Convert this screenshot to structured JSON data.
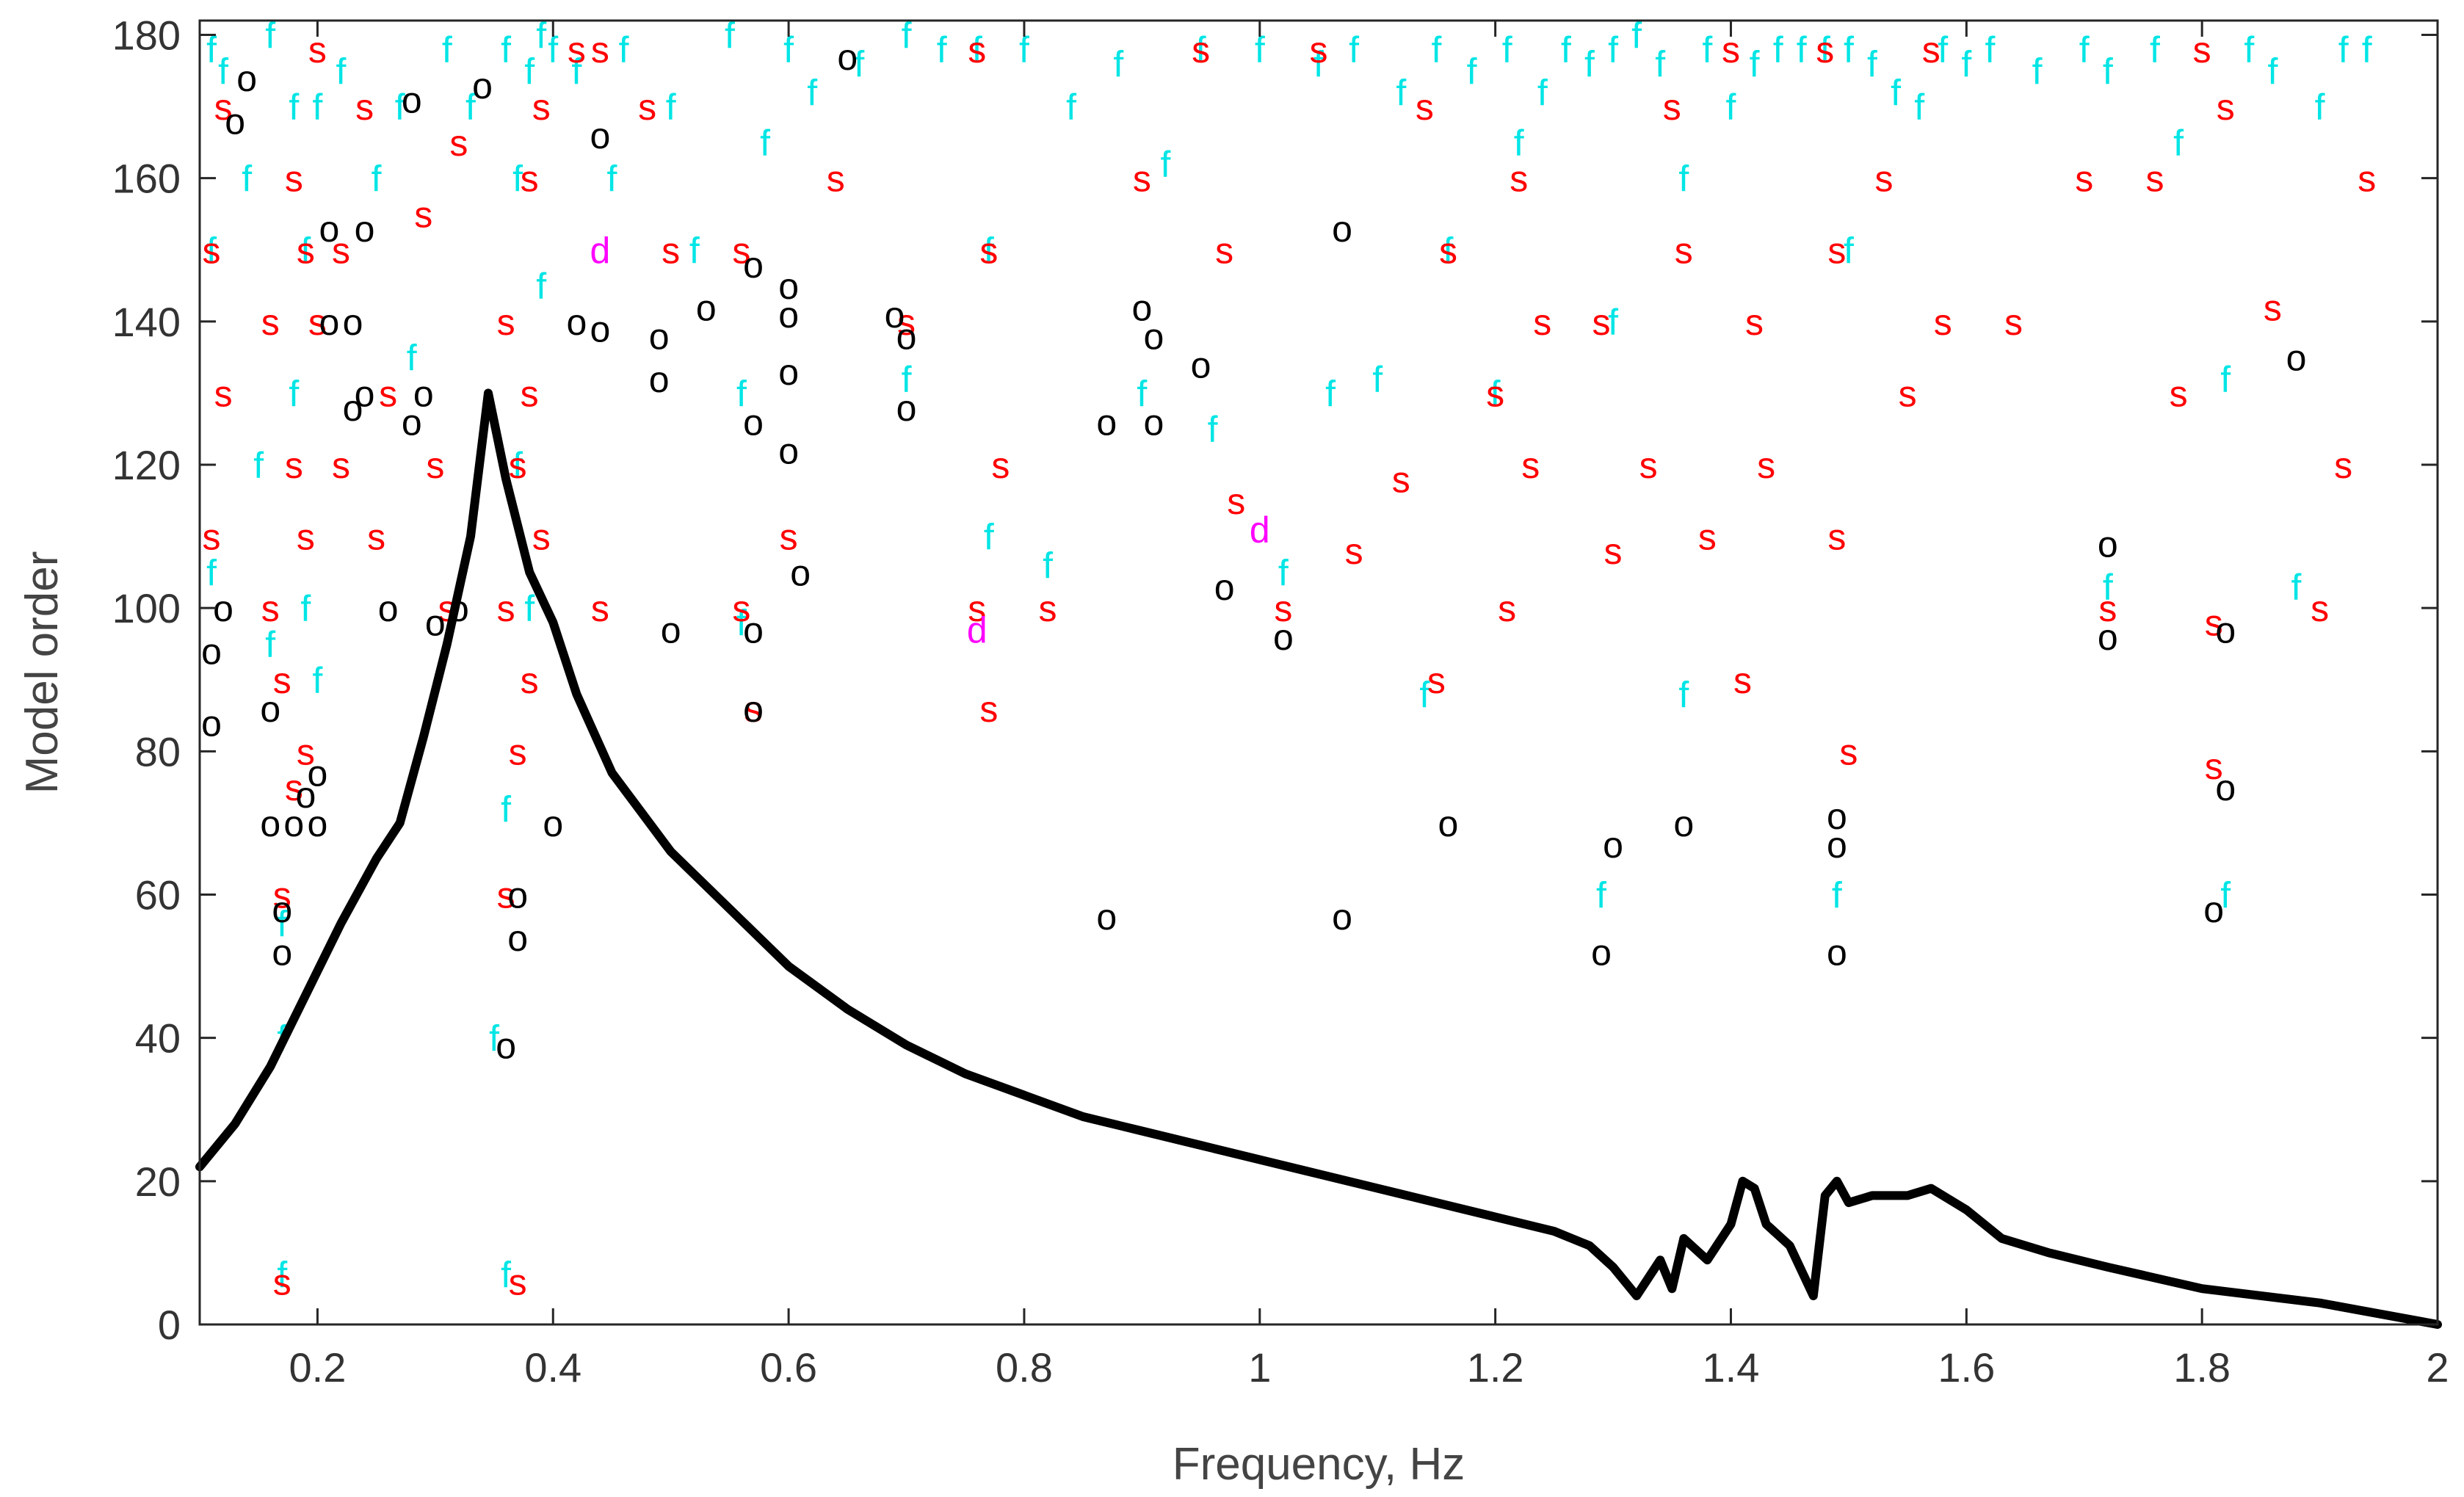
{
  "chart_data": {
    "type": "scatter",
    "title": "",
    "xlabel": "Frequency, Hz",
    "ylabel": "Model order",
    "xlim": [
      0.1,
      2.0
    ],
    "ylim": [
      0,
      182
    ],
    "xticks": [
      0.2,
      0.4,
      0.6,
      0.8,
      1.0,
      1.2,
      1.4,
      1.6,
      1.8,
      2.0
    ],
    "xtick_labels": [
      "0.2",
      "0.4",
      "0.6",
      "0.8",
      "1",
      "1.2",
      "1.4",
      "1.6",
      "1.8",
      "2"
    ],
    "yticks": [
      0,
      20,
      40,
      60,
      80,
      100,
      120,
      140,
      160,
      180
    ],
    "ytick_labels": [
      "0",
      "20",
      "40",
      "60",
      "80",
      "100",
      "120",
      "140",
      "160",
      "180"
    ],
    "grid": false,
    "colors": {
      "f": "#00e5e5",
      "s": "#ff0000",
      "o": "#000000",
      "d": "#ff00ff",
      "curve": "#000000"
    },
    "series": [
      {
        "name": "spectrum",
        "kind": "line",
        "x": [
          0.1,
          0.13,
          0.16,
          0.19,
          0.22,
          0.25,
          0.27,
          0.29,
          0.31,
          0.33,
          0.345,
          0.36,
          0.38,
          0.4,
          0.42,
          0.45,
          0.5,
          0.55,
          0.6,
          0.65,
          0.7,
          0.75,
          0.8,
          0.85,
          0.9,
          0.95,
          1.0,
          1.05,
          1.1,
          1.15,
          1.2,
          1.25,
          1.28,
          1.3,
          1.32,
          1.34,
          1.35,
          1.36,
          1.38,
          1.4,
          1.41,
          1.42,
          1.43,
          1.45,
          1.47,
          1.48,
          1.49,
          1.5,
          1.52,
          1.55,
          1.57,
          1.6,
          1.63,
          1.67,
          1.72,
          1.8,
          1.9,
          2.0
        ],
        "y": [
          22,
          28,
          36,
          46,
          56,
          65,
          70,
          82,
          95,
          110,
          130,
          118,
          105,
          98,
          88,
          77,
          66,
          58,
          50,
          44,
          39,
          35,
          32,
          29,
          27,
          25,
          23,
          21,
          19,
          17,
          15,
          13,
          11,
          8,
          4,
          9,
          5,
          12,
          9,
          14,
          20,
          19,
          14,
          11,
          4,
          18,
          20,
          17,
          18,
          18,
          19,
          16,
          12,
          10,
          8,
          5,
          3,
          0
        ]
      },
      {
        "name": "f",
        "kind": "marker",
        "x": [
          0.11,
          0.11,
          0.11,
          0.12,
          0.14,
          0.15,
          0.16,
          0.16,
          0.17,
          0.17,
          0.17,
          0.18,
          0.18,
          0.19,
          0.19,
          0.2,
          0.2,
          0.22,
          0.25,
          0.27,
          0.28,
          0.31,
          0.33,
          0.35,
          0.36,
          0.36,
          0.36,
          0.37,
          0.37,
          0.38,
          0.38,
          0.39,
          0.39,
          0.4,
          0.42,
          0.45,
          0.46,
          0.5,
          0.52,
          0.55,
          0.56,
          0.56,
          0.58,
          0.6,
          0.62,
          0.66,
          0.7,
          0.7,
          0.73,
          0.76,
          0.77,
          0.77,
          0.8,
          0.82,
          0.84,
          0.88,
          0.9,
          0.92,
          0.95,
          0.96,
          1.0,
          1.02,
          1.05,
          1.06,
          1.08,
          1.1,
          1.12,
          1.14,
          1.15,
          1.16,
          1.18,
          1.2,
          1.21,
          1.22,
          1.24,
          1.26,
          1.28,
          1.29,
          1.3,
          1.3,
          1.32,
          1.34,
          1.36,
          1.36,
          1.38,
          1.4,
          1.42,
          1.44,
          1.46,
          1.48,
          1.49,
          1.5,
          1.5,
          1.52,
          1.54,
          1.56,
          1.58,
          1.6,
          1.62,
          1.66,
          1.7,
          1.72,
          1.72,
          1.76,
          1.78,
          1.82,
          1.82,
          1.84,
          1.86,
          1.88,
          1.9,
          1.92,
          1.94
        ],
        "y": [
          178,
          150,
          105,
          175,
          160,
          120,
          180,
          95,
          56,
          40,
          7,
          170,
          130,
          150,
          100,
          90,
          170,
          175,
          160,
          170,
          135,
          178,
          170,
          40,
          7,
          72,
          178,
          120,
          160,
          175,
          100,
          145,
          180,
          178,
          175,
          160,
          178,
          170,
          150,
          180,
          130,
          98,
          165,
          178,
          172,
          176,
          180,
          132,
          178,
          178,
          150,
          110,
          178,
          106,
          170,
          176,
          130,
          162,
          178,
          125,
          178,
          105,
          176,
          130,
          178,
          132,
          172,
          88,
          178,
          150,
          175,
          130,
          178,
          165,
          172,
          178,
          176,
          60,
          140,
          178,
          180,
          176,
          88,
          160,
          178,
          170,
          176,
          178,
          178,
          178,
          60,
          150,
          178,
          176,
          172,
          170,
          178,
          176,
          178,
          175,
          178,
          103,
          175,
          178,
          165,
          60,
          132,
          178,
          175,
          103,
          170,
          178,
          178
        ]
      },
      {
        "name": "s",
        "kind": "marker",
        "x": [
          0.11,
          0.11,
          0.12,
          0.12,
          0.16,
          0.16,
          0.17,
          0.17,
          0.17,
          0.18,
          0.18,
          0.18,
          0.19,
          0.19,
          0.19,
          0.2,
          0.2,
          0.22,
          0.22,
          0.24,
          0.25,
          0.26,
          0.29,
          0.3,
          0.31,
          0.32,
          0.36,
          0.36,
          0.36,
          0.37,
          0.37,
          0.37,
          0.38,
          0.38,
          0.38,
          0.39,
          0.39,
          0.42,
          0.44,
          0.44,
          0.48,
          0.5,
          0.56,
          0.56,
          0.57,
          0.6,
          0.64,
          0.7,
          0.76,
          0.76,
          0.77,
          0.77,
          0.78,
          0.82,
          0.9,
          0.95,
          0.97,
          0.98,
          1.02,
          1.05,
          1.08,
          1.12,
          1.14,
          1.15,
          1.16,
          1.2,
          1.21,
          1.22,
          1.23,
          1.24,
          1.29,
          1.3,
          1.33,
          1.35,
          1.36,
          1.38,
          1.4,
          1.41,
          1.42,
          1.43,
          1.48,
          1.49,
          1.49,
          1.5,
          1.53,
          1.55,
          1.57,
          1.58,
          1.64,
          1.7,
          1.72,
          1.76,
          1.78,
          1.8,
          1.81,
          1.81,
          1.82,
          1.86,
          1.9,
          1.92,
          1.94
        ],
        "y": [
          150,
          110,
          130,
          170,
          140,
          100,
          60,
          90,
          6,
          160,
          120,
          75,
          150,
          110,
          80,
          140,
          178,
          150,
          120,
          170,
          110,
          130,
          155,
          120,
          100,
          165,
          60,
          100,
          140,
          6,
          80,
          120,
          160,
          90,
          130,
          170,
          110,
          178,
          178,
          100,
          170,
          150,
          150,
          100,
          86,
          110,
          160,
          140,
          178,
          100,
          150,
          86,
          120,
          100,
          160,
          178,
          150,
          115,
          100,
          178,
          108,
          118,
          170,
          90,
          150,
          130,
          100,
          160,
          120,
          140,
          140,
          108,
          120,
          170,
          150,
          110,
          178,
          90,
          140,
          120,
          178,
          150,
          110,
          80,
          160,
          130,
          178,
          140,
          140,
          160,
          100,
          160,
          130,
          178,
          98,
          78,
          170,
          142,
          100,
          120,
          160
        ]
      },
      {
        "name": "o",
        "kind": "marker",
        "x": [
          0.11,
          0.11,
          0.12,
          0.13,
          0.14,
          0.16,
          0.16,
          0.17,
          0.17,
          0.18,
          0.19,
          0.2,
          0.2,
          0.21,
          0.21,
          0.23,
          0.23,
          0.24,
          0.24,
          0.26,
          0.28,
          0.28,
          0.29,
          0.3,
          0.32,
          0.34,
          0.36,
          0.37,
          0.37,
          0.4,
          0.42,
          0.44,
          0.44,
          0.49,
          0.49,
          0.5,
          0.53,
          0.57,
          0.57,
          0.57,
          0.57,
          0.6,
          0.6,
          0.6,
          0.6,
          0.61,
          0.65,
          0.69,
          0.7,
          0.7,
          0.87,
          0.87,
          0.9,
          0.91,
          0.91,
          0.95,
          0.97,
          1.02,
          1.07,
          1.07,
          1.16,
          1.29,
          1.3,
          1.36,
          1.49,
          1.49,
          1.49,
          1.72,
          1.72,
          1.81,
          1.82,
          1.82,
          1.88
        ],
        "y": [
          84,
          94,
          100,
          168,
          174,
          70,
          86,
          52,
          58,
          70,
          74,
          70,
          77,
          153,
          140,
          128,
          140,
          130,
          153,
          100,
          126,
          171,
          130,
          98,
          100,
          173,
          39,
          54,
          60,
          70,
          140,
          139,
          166,
          132,
          138,
          97,
          142,
          86,
          97,
          126,
          148,
          122,
          133,
          141,
          145,
          105,
          177,
          141,
          128,
          138,
          57,
          126,
          142,
          126,
          138,
          134,
          103,
          96,
          57,
          153,
          70,
          52,
          67,
          70,
          52,
          67,
          71,
          96,
          109,
          58,
          75,
          97,
          135
        ]
      },
      {
        "name": "d",
        "kind": "marker",
        "x": [
          0.44,
          0.76,
          1.0
        ],
        "y": [
          150,
          97,
          111
        ]
      }
    ]
  }
}
